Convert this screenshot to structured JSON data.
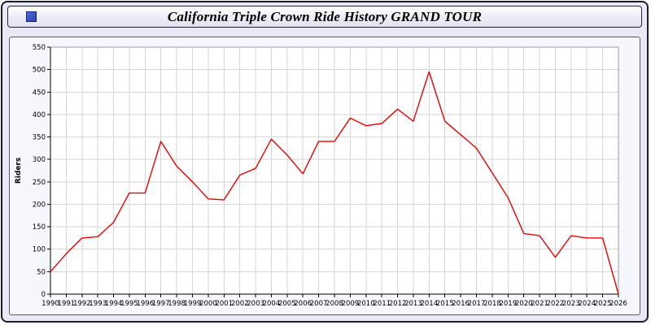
{
  "window": {
    "title": "California Triple Crown Ride History GRAND TOUR",
    "icon": "blue-square-app-icon"
  },
  "chart_data": {
    "type": "line",
    "title": "California Triple Crown Ride History GRAND TOUR",
    "xlabel": "",
    "ylabel": "Riders",
    "ylim": [
      0,
      550
    ],
    "ytick_step": 50,
    "yticks": [
      0,
      50,
      100,
      150,
      200,
      250,
      300,
      350,
      400,
      450,
      500,
      550
    ],
    "grid": true,
    "legend": "none",
    "line_color": "#ee0000",
    "plot_background": "#ffffff",
    "x": [
      1990,
      1991,
      1992,
      1993,
      1994,
      1995,
      1996,
      1997,
      1998,
      1999,
      2000,
      2001,
      2002,
      2003,
      2004,
      2005,
      2006,
      2007,
      2008,
      2009,
      2010,
      2011,
      2012,
      2013,
      2014,
      2015,
      2016,
      2017,
      2018,
      2019,
      2020,
      2021,
      2022,
      2023,
      2024,
      2025,
      2026
    ],
    "values": [
      50,
      90,
      125,
      128,
      160,
      225,
      225,
      340,
      285,
      250,
      212,
      210,
      265,
      280,
      345,
      310,
      268,
      340,
      340,
      392,
      375,
      380,
      412,
      385,
      495,
      385,
      355,
      325,
      270,
      215,
      135,
      130,
      82,
      130,
      125,
      125,
      0
    ]
  }
}
